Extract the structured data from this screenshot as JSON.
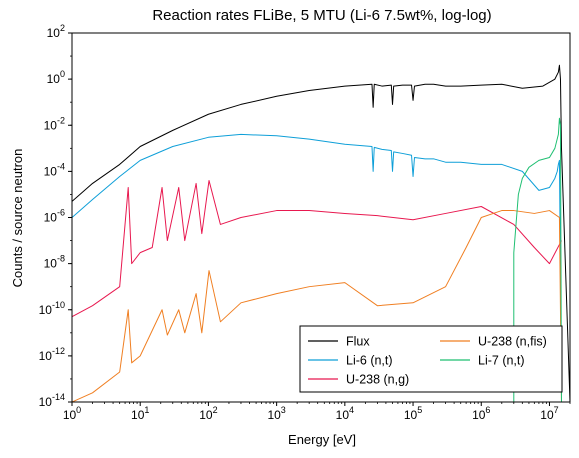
{
  "chart_data": {
    "type": "line",
    "title": "Reaction rates FLiBe, 5 MTU (Li-6 7.5wt%, log-log)",
    "xlabel": "Energy [eV]",
    "ylabel": "Counts / source neutron",
    "xscale": "log",
    "yscale": "log",
    "xlim": [
      1,
      20000000
    ],
    "ylim": [
      1e-14,
      100
    ],
    "x_ticks": [
      {
        "value": 1,
        "base": "10",
        "exp": "0"
      },
      {
        "value": 10,
        "base": "10",
        "exp": "1"
      },
      {
        "value": 100,
        "base": "10",
        "exp": "2"
      },
      {
        "value": 1000,
        "base": "10",
        "exp": "3"
      },
      {
        "value": 10000,
        "base": "10",
        "exp": "4"
      },
      {
        "value": 100000,
        "base": "10",
        "exp": "5"
      },
      {
        "value": 1000000,
        "base": "10",
        "exp": "6"
      },
      {
        "value": 10000000,
        "base": "10",
        "exp": "7"
      }
    ],
    "y_ticks": [
      {
        "value": 100,
        "base": "10",
        "exp": "2"
      },
      {
        "value": 1,
        "base": "10",
        "exp": "0"
      },
      {
        "value": 0.01,
        "base": "10",
        "exp": "-2"
      },
      {
        "value": 0.0001,
        "base": "10",
        "exp": "-4"
      },
      {
        "value": 1e-06,
        "base": "10",
        "exp": "-6"
      },
      {
        "value": 1e-08,
        "base": "10",
        "exp": "-8"
      },
      {
        "value": 1e-10,
        "base": "10",
        "exp": "-10"
      },
      {
        "value": 1e-12,
        "base": "10",
        "exp": "-12"
      },
      {
        "value": 1e-14,
        "base": "10",
        "exp": "-14"
      }
    ],
    "legend_position": "lower right",
    "legend_columns": 2,
    "series": [
      {
        "name": "Flux",
        "color": "#000000",
        "x": [
          1,
          2,
          5,
          10,
          30,
          100,
          300,
          1000,
          3000,
          10000,
          25000,
          26000,
          27000,
          35000,
          48000,
          50000,
          52000,
          70000,
          95000,
          100000,
          105000,
          150000,
          200000,
          300000,
          500000,
          1000000,
          2000000,
          4000000,
          8000000,
          12000000,
          13500000,
          14000000,
          14500000,
          15000000,
          20000000
        ],
        "y": [
          5e-06,
          3e-05,
          0.0002,
          0.0012,
          0.006,
          0.03,
          0.08,
          0.18,
          0.32,
          0.5,
          0.6,
          0.06,
          0.6,
          0.5,
          0.55,
          0.08,
          0.5,
          0.55,
          0.55,
          0.12,
          0.5,
          0.6,
          0.6,
          0.5,
          0.5,
          0.55,
          0.6,
          0.4,
          0.5,
          1.0,
          2.0,
          4.0,
          1.0,
          0.001,
          1e-14
        ]
      },
      {
        "name": "Li-6 (n,t)",
        "color": "#0e9fd8",
        "x": [
          1,
          2,
          5,
          10,
          30,
          100,
          300,
          1000,
          3000,
          10000,
          25000,
          26000,
          27000,
          35000,
          48000,
          50000,
          52000,
          70000,
          95000,
          100000,
          105000,
          150000,
          200000,
          300000,
          500000,
          1000000,
          2000000,
          4000000,
          7000000,
          10000000,
          12000000,
          13000000,
          13500000,
          14000000,
          15000000
        ],
        "y": [
          1e-06,
          6e-06,
          6e-05,
          0.0003,
          0.0012,
          0.003,
          0.004,
          0.0035,
          0.0025,
          0.0015,
          0.0012,
          0.0001,
          0.0011,
          0.0009,
          0.0008,
          0.0001,
          0.0007,
          0.0006,
          0.0005,
          6e-05,
          0.0004,
          0.00035,
          0.00035,
          0.00025,
          0.00025,
          0.0002,
          0.0002,
          0.0001,
          1.5e-05,
          2e-05,
          5e-05,
          0.0001,
          0.0002,
          0.0003,
          5e-14
        ]
      },
      {
        "name": "U-238 (n,g)",
        "color": "#e8184f",
        "x": [
          1,
          2,
          5,
          6.67,
          7.5,
          10,
          15,
          20.9,
          25,
          36.7,
          45,
          66,
          80,
          102,
          150,
          300,
          1000,
          3000,
          10000,
          30000,
          100000,
          300000,
          1000000,
          3000000,
          6000000,
          10000000,
          15000000
        ],
        "y": [
          5e-11,
          1.5e-10,
          1e-09,
          2e-05,
          1e-08,
          3e-08,
          5e-08,
          2e-05,
          1e-07,
          2e-05,
          1e-07,
          3e-05,
          2e-07,
          4e-05,
          5e-07,
          1e-06,
          2e-06,
          2e-06,
          1.5e-06,
          1.2e-06,
          8e-07,
          1.5e-06,
          3e-06,
          5e-07,
          5e-08,
          1e-08,
          1e-07
        ]
      },
      {
        "name": "U-238 (n,fis)",
        "color": "#f07f22",
        "x": [
          1,
          2,
          5,
          6.67,
          7.5,
          10,
          20.9,
          25,
          36.7,
          45,
          66,
          80,
          102,
          150,
          300,
          1000,
          3000,
          10000,
          30000,
          100000,
          300000,
          600000,
          1000000,
          1500000,
          2000000,
          3000000,
          6000000,
          10000000,
          14000000,
          15000000
        ],
        "y": [
          1e-14,
          2.5e-14,
          2e-13,
          1e-10,
          5e-13,
          1e-12,
          1e-10,
          8e-12,
          1e-10,
          1e-11,
          5e-10,
          1e-11,
          5e-09,
          3e-11,
          2e-10,
          5e-10,
          1e-09,
          1.5e-09,
          1.5e-10,
          2e-10,
          1e-09,
          5e-08,
          1e-06,
          1.5e-06,
          2e-06,
          2e-06,
          1.5e-06,
          2e-06,
          1e-06,
          1e-14
        ]
      },
      {
        "name": "Li-7 (n,t)",
        "color": "#1fbf72",
        "x": [
          3000000,
          3000000,
          3500000,
          4000000,
          5000000,
          7000000,
          10000000,
          12000000,
          13500000,
          14000000,
          14500000,
          15000000
        ],
        "y": [
          1e-14,
          3e-08,
          1e-05,
          5e-05,
          0.00015,
          0.0003,
          0.0004,
          0.001,
          0.004,
          0.02,
          0.01,
          1e-14
        ]
      }
    ]
  }
}
